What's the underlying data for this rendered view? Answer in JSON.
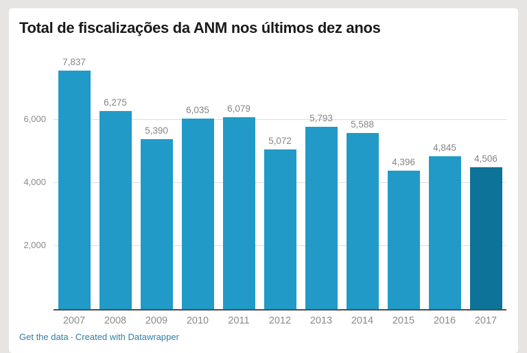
{
  "title": "Total de fiscalizações da ANM nos últimos dez anos",
  "footer": {
    "get_data_label": "Get the data",
    "separator": "·",
    "credit_label": "Created with Datawrapper"
  },
  "colors": {
    "background": "#e6e5e3",
    "card": "#ffffff",
    "title": "#1a1a1a",
    "bar": "#219ac7",
    "bar_highlight": "#0d7398",
    "grid": "#dcdcdc",
    "axis_line": "#4d4d4d",
    "value_label": "#858585",
    "tick_label": "#8b8b8b",
    "link": "#2e7fa3"
  },
  "chart_data": {
    "type": "bar",
    "title": "Total de fiscalizações da ANM nos últimos dez anos",
    "categories": [
      "2007",
      "2008",
      "2009",
      "2010",
      "2011",
      "2012",
      "2013",
      "2014",
      "2015",
      "2016",
      "2017"
    ],
    "values": [
      7837,
      6275,
      5390,
      6035,
      6079,
      5072,
      5793,
      5588,
      4396,
      4845,
      4506
    ],
    "value_labels": [
      "7,837",
      "6,275",
      "5,390",
      "6,035",
      "6,079",
      "5,072",
      "5,793",
      "5,588",
      "4,396",
      "4,845",
      "4,506"
    ],
    "highlighted_category": "2017",
    "y_ticks": [
      2000,
      4000,
      6000
    ],
    "y_tick_labels": [
      "2,000",
      "4,000",
      "6,000"
    ],
    "ylim": [
      0,
      8000
    ],
    "xlabel": "",
    "ylabel": "",
    "grid": true,
    "legend": false
  }
}
